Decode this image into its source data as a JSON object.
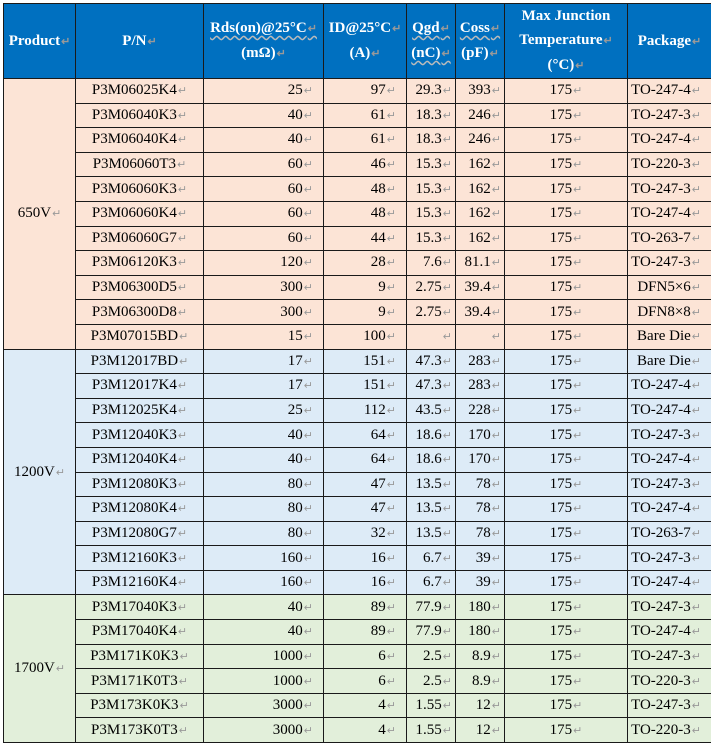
{
  "headers": {
    "product": "Product",
    "pn": "P/N",
    "rds_1": "Rds(on)@25°C",
    "rds_2": "(mΩ)",
    "id_1": "ID@25°C",
    "id_2": "(A)",
    "qgd_1": "Qgd",
    "qgd_2": "(nC)",
    "coss_1": "Coss",
    "coss_2": "(pF)",
    "tj_1": "Max Junction",
    "tj_2": "Temperature",
    "tj_3": "(°C)",
    "package": "Package"
  },
  "groups": [
    {
      "product": "650V",
      "rows": [
        [
          "P3M06025K4",
          "25",
          "97",
          "29.3",
          "393",
          "175",
          "TO-247-4"
        ],
        [
          "P3M06040K3",
          "40",
          "61",
          "18.3",
          "246",
          "175",
          "TO-247-3"
        ],
        [
          "P3M06040K4",
          "40",
          "61",
          "18.3",
          "246",
          "175",
          "TO-247-4"
        ],
        [
          "P3M06060T3",
          "60",
          "46",
          "15.3",
          "162",
          "175",
          "TO-220-3"
        ],
        [
          "P3M06060K3",
          "60",
          "48",
          "15.3",
          "162",
          "175",
          "TO-247-3"
        ],
        [
          "P3M06060K4",
          "60",
          "48",
          "15.3",
          "162",
          "175",
          "TO-247-4"
        ],
        [
          "P3M06060G7",
          "60",
          "44",
          "15.3",
          "162",
          "175",
          "TO-263-7"
        ],
        [
          "P3M06120K3",
          "120",
          "28",
          "7.6",
          "81.1",
          "175",
          "TO-247-3"
        ],
        [
          "P3M06300D5",
          "300",
          "9",
          "2.75",
          "39.4",
          "175",
          "DFN5×6"
        ],
        [
          "P3M06300D8",
          "300",
          "9",
          "2.75",
          "39.4",
          "175",
          "DFN8×8"
        ],
        [
          "P3M07015BD",
          "15",
          "100",
          "",
          "",
          "175",
          "Bare Die"
        ]
      ]
    },
    {
      "product": "1200V",
      "rows": [
        [
          "P3M12017BD",
          "17",
          "151",
          "47.3",
          "283",
          "175",
          "Bare Die"
        ],
        [
          "P3M12017K4",
          "17",
          "151",
          "47.3",
          "283",
          "175",
          "TO-247-4"
        ],
        [
          "P3M12025K4",
          "25",
          "112",
          "43.5",
          "228",
          "175",
          "TO-247-4"
        ],
        [
          "P3M12040K3",
          "40",
          "64",
          "18.6",
          "170",
          "175",
          "TO-247-3"
        ],
        [
          "P3M12040K4",
          "40",
          "64",
          "18.6",
          "170",
          "175",
          "TO-247-4"
        ],
        [
          "P3M12080K3",
          "80",
          "47",
          "13.5",
          "78",
          "175",
          "TO-247-3"
        ],
        [
          "P3M12080K4",
          "80",
          "47",
          "13.5",
          "78",
          "175",
          "TO-247-4"
        ],
        [
          "P3M12080G7",
          "80",
          "32",
          "13.5",
          "78",
          "175",
          "TO-263-7"
        ],
        [
          "P3M12160K3",
          "160",
          "16",
          "6.7",
          "39",
          "175",
          "TO-247-3"
        ],
        [
          "P3M12160K4",
          "160",
          "16",
          "6.7",
          "39",
          "175",
          "TO-247-4"
        ]
      ]
    },
    {
      "product": "1700V",
      "rows": [
        [
          "P3M17040K3",
          "40",
          "89",
          "77.9",
          "180",
          "175",
          "TO-247-3"
        ],
        [
          "P3M17040K4",
          "40",
          "89",
          "77.9",
          "180",
          "175",
          "TO-247-4"
        ],
        [
          "P3M171K0K3",
          "1000",
          "6",
          "2.5",
          "8.9",
          "175",
          "TO-247-3"
        ],
        [
          "P3M171K0T3",
          "1000",
          "6",
          "2.5",
          "8.9",
          "175",
          "TO-220-3"
        ],
        [
          "P3M173K0K3",
          "3000",
          "4",
          "1.55",
          "12",
          "175",
          "TO-247-3"
        ],
        [
          "P3M173K0T3",
          "3000",
          "4",
          "1.55",
          "12",
          "175",
          "TO-220-3"
        ]
      ]
    }
  ]
}
